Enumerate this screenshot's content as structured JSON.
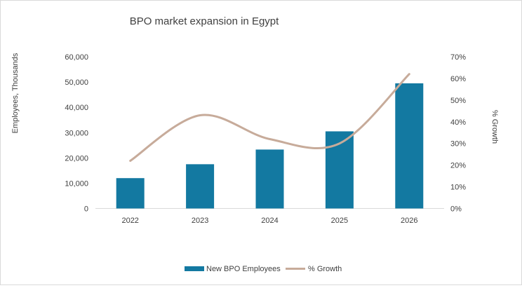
{
  "chart_data": {
    "type": "bar+line",
    "title": "BPO market expansion in Egypt",
    "categories": [
      "2022",
      "2023",
      "2024",
      "2025",
      "2026"
    ],
    "y_left": {
      "label": "Employees, Thousands",
      "ticks": [
        "0",
        "10,000",
        "20,000",
        "30,000",
        "40,000",
        "50,000",
        "60,000"
      ],
      "ylim": [
        0,
        60000
      ]
    },
    "y_right": {
      "label": "% Growth",
      "ticks": [
        "0%",
        "10%",
        "20%",
        "30%",
        "40%",
        "50%",
        "60%",
        "70%"
      ],
      "ylim": [
        0,
        70
      ]
    },
    "series": [
      {
        "name": "New BPO Employees",
        "type": "bar",
        "axis": "left",
        "color": "#1379a1",
        "values": [
          12000,
          17500,
          23300,
          30500,
          49500
        ]
      },
      {
        "name": "% Growth",
        "type": "line",
        "axis": "right",
        "color": "#c7ab9a",
        "smooth": true,
        "values": [
          22,
          43,
          32,
          30,
          62
        ]
      }
    ],
    "grid": false,
    "legend": "bottom"
  }
}
